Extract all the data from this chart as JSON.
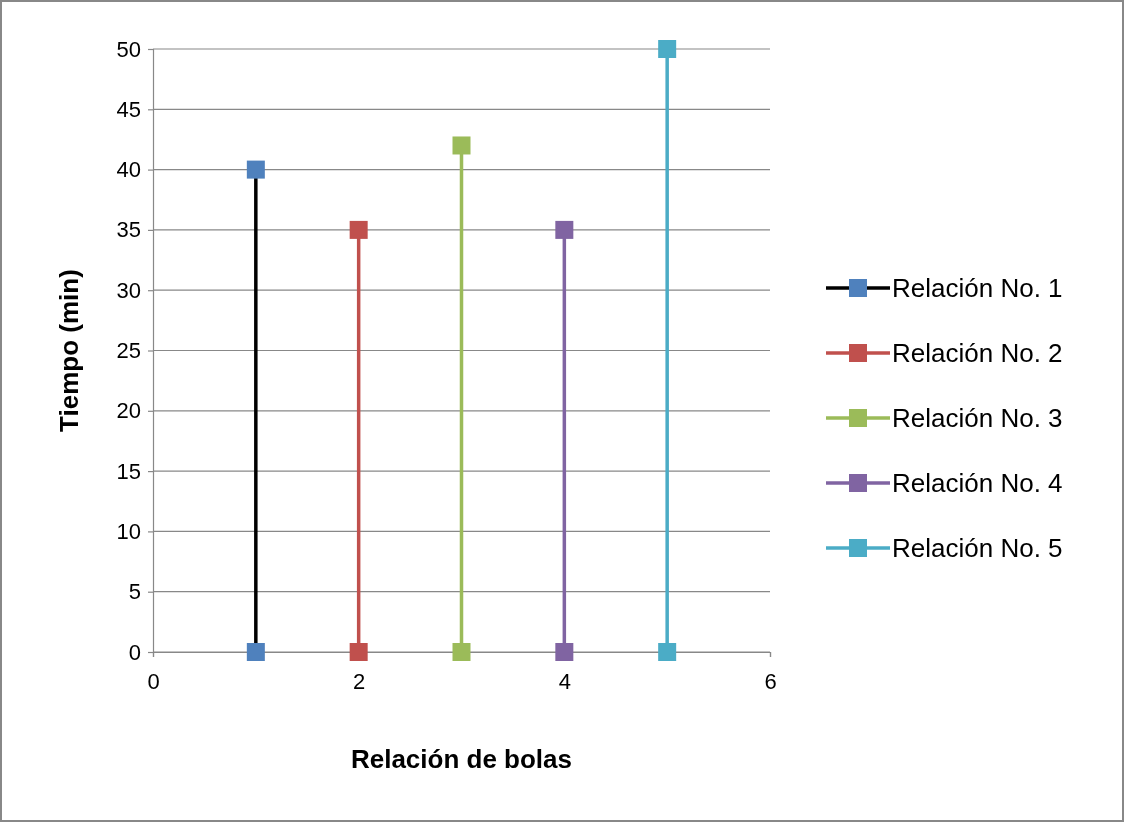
{
  "chart_data": {
    "type": "line",
    "xlabel": "Relación de bolas",
    "ylabel": "Tiempo (min)",
    "xlim": [
      0,
      6
    ],
    "xticks": [
      0,
      2,
      4,
      6
    ],
    "ylim": [
      0,
      50
    ],
    "yticks": [
      0,
      5,
      10,
      15,
      20,
      25,
      30,
      35,
      40,
      45,
      50
    ],
    "grid": "y",
    "legend": "right",
    "marker": "square",
    "line_style": "solid",
    "series": [
      {
        "name": "Relación No. 1",
        "color": "#000000",
        "colors": [
          "#4f81bd",
          "#4f81bd"
        ],
        "x": [
          1,
          1
        ],
        "values": [
          0,
          40
        ]
      },
      {
        "name": "Relación No. 2",
        "color": "#c0504d",
        "x": [
          2,
          2
        ],
        "values": [
          0,
          35
        ]
      },
      {
        "name": "Relación No. 3",
        "color": "#9bbb59",
        "x": [
          3,
          3
        ],
        "values": [
          0,
          42
        ]
      },
      {
        "name": "Relación No. 4",
        "color": "#8064a2",
        "x": [
          4,
          4
        ],
        "values": [
          0,
          35
        ]
      },
      {
        "name": "Relación No. 5",
        "color": "#4bacc6",
        "x": [
          5,
          5
        ],
        "values": [
          0,
          50
        ]
      }
    ]
  }
}
